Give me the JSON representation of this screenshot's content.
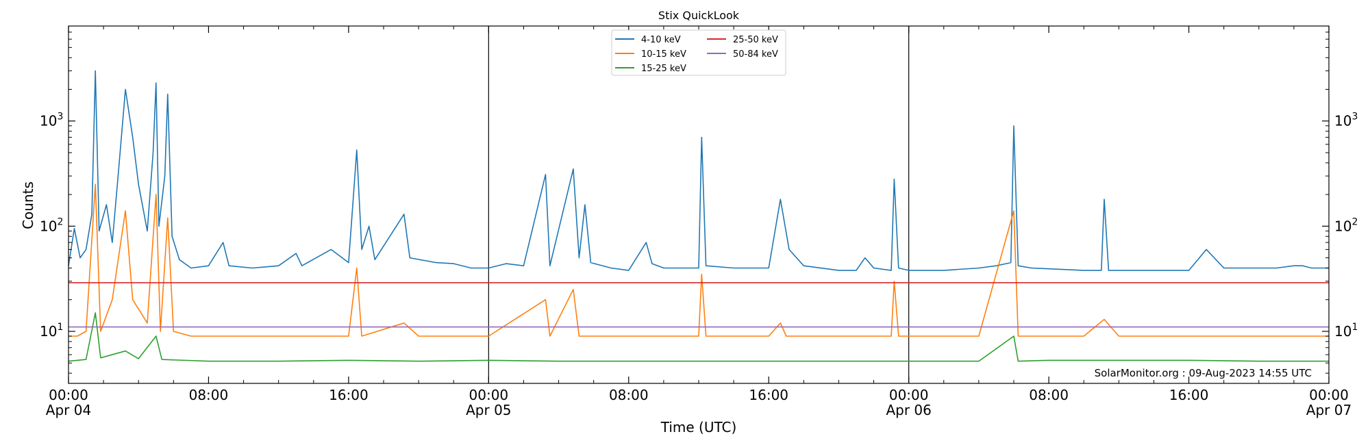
{
  "chart_data": {
    "type": "line",
    "title": "Stix QuickLook",
    "xlabel": "Time (UTC)",
    "ylabel": "Counts",
    "yscale": "log",
    "ylim": [
      3.2,
      8000
    ],
    "xlim": [
      "2023-04-04 00:00",
      "2023-04-07 00:00"
    ],
    "x_ticks": [
      {
        "time": "2023-04-04 00:00",
        "line1": "00:00",
        "line2": "Apr 04"
      },
      {
        "time": "2023-04-04 08:00",
        "line1": "08:00",
        "line2": ""
      },
      {
        "time": "2023-04-04 16:00",
        "line1": "16:00",
        "line2": ""
      },
      {
        "time": "2023-04-05 00:00",
        "line1": "00:00",
        "line2": "Apr 05"
      },
      {
        "time": "2023-04-05 08:00",
        "line1": "08:00",
        "line2": ""
      },
      {
        "time": "2023-04-05 16:00",
        "line1": "16:00",
        "line2": ""
      },
      {
        "time": "2023-04-06 00:00",
        "line1": "00:00",
        "line2": "Apr 06"
      },
      {
        "time": "2023-04-06 08:00",
        "line1": "08:00",
        "line2": ""
      },
      {
        "time": "2023-04-06 16:00",
        "line1": "16:00",
        "line2": ""
      },
      {
        "time": "2023-04-07 00:00",
        "line1": "00:00",
        "line2": "Apr 07"
      }
    ],
    "y_ticks": [
      {
        "value": 10,
        "label": "10",
        "exp": "1"
      },
      {
        "value": 100,
        "label": "10",
        "exp": "2"
      },
      {
        "value": 1000,
        "label": "10",
        "exp": "3"
      }
    ],
    "day_separators": [
      "2023-04-05 00:00",
      "2023-04-06 00:00"
    ],
    "legend_position": "top-center",
    "grid": false,
    "annotation": "SolarMonitor.org : 09-Aug-2023 14:55 UTC",
    "series": [
      {
        "name": "4-10 keV",
        "color": "#1f77b4",
        "values": [
          [
            "2023-04-04 00:00",
            42
          ],
          [
            "2023-04-04 00:20",
            95
          ],
          [
            "2023-04-04 00:40",
            50
          ],
          [
            "2023-04-04 01:00",
            60
          ],
          [
            "2023-04-04 01:20",
            130
          ],
          [
            "2023-04-04 01:32",
            3000
          ],
          [
            "2023-04-04 01:45",
            90
          ],
          [
            "2023-04-04 02:10",
            160
          ],
          [
            "2023-04-04 02:30",
            70
          ],
          [
            "2023-04-04 02:50",
            300
          ],
          [
            "2023-04-04 03:15",
            2000
          ],
          [
            "2023-04-04 03:40",
            700
          ],
          [
            "2023-04-04 04:00",
            250
          ],
          [
            "2023-04-04 04:30",
            90
          ],
          [
            "2023-04-04 04:50",
            500
          ],
          [
            "2023-04-04 05:00",
            2300
          ],
          [
            "2023-04-04 05:10",
            100
          ],
          [
            "2023-04-04 05:30",
            300
          ],
          [
            "2023-04-04 05:40",
            1800
          ],
          [
            "2023-04-04 05:55",
            80
          ],
          [
            "2023-04-04 06:20",
            48
          ],
          [
            "2023-04-04 07:00",
            40
          ],
          [
            "2023-04-04 08:00",
            42
          ],
          [
            "2023-04-04 08:50",
            70
          ],
          [
            "2023-04-04 09:10",
            42
          ],
          [
            "2023-04-04 10:30",
            40
          ],
          [
            "2023-04-04 12:00",
            42
          ],
          [
            "2023-04-04 13:00",
            55
          ],
          [
            "2023-04-04 13:20",
            42
          ],
          [
            "2023-04-04 15:00",
            60
          ],
          [
            "2023-04-04 16:00",
            45
          ],
          [
            "2023-04-04 16:28",
            530
          ],
          [
            "2023-04-04 16:45",
            60
          ],
          [
            "2023-04-04 17:10",
            100
          ],
          [
            "2023-04-04 17:30",
            48
          ],
          [
            "2023-04-04 19:10",
            130
          ],
          [
            "2023-04-04 19:30",
            50
          ],
          [
            "2023-04-04 21:00",
            45
          ],
          [
            "2023-04-04 22:00",
            44
          ],
          [
            "2023-04-04 23:00",
            40
          ],
          [
            "2023-04-05 00:00",
            40
          ],
          [
            "2023-04-05 01:00",
            44
          ],
          [
            "2023-04-05 02:00",
            42
          ],
          [
            "2023-04-05 03:15",
            310
          ],
          [
            "2023-04-05 03:30",
            42
          ],
          [
            "2023-04-05 04:50",
            350
          ],
          [
            "2023-04-05 05:10",
            50
          ],
          [
            "2023-04-05 05:30",
            160
          ],
          [
            "2023-04-05 05:50",
            45
          ],
          [
            "2023-04-05 07:00",
            40
          ],
          [
            "2023-04-05 08:00",
            38
          ],
          [
            "2023-04-05 09:00",
            70
          ],
          [
            "2023-04-05 09:20",
            44
          ],
          [
            "2023-04-05 10:00",
            40
          ],
          [
            "2023-04-05 11:00",
            40
          ],
          [
            "2023-04-05 12:00",
            40
          ],
          [
            "2023-04-05 12:10",
            700
          ],
          [
            "2023-04-05 12:25",
            42
          ],
          [
            "2023-04-05 14:00",
            40
          ],
          [
            "2023-04-05 15:00",
            40
          ],
          [
            "2023-04-05 16:00",
            40
          ],
          [
            "2023-04-05 16:40",
            180
          ],
          [
            "2023-04-05 17:10",
            60
          ],
          [
            "2023-04-05 18:00",
            42
          ],
          [
            "2023-04-05 20:00",
            38
          ],
          [
            "2023-04-05 21:00",
            38
          ],
          [
            "2023-04-05 21:30",
            50
          ],
          [
            "2023-04-05 22:00",
            40
          ],
          [
            "2023-04-05 23:00",
            38
          ],
          [
            "2023-04-05 23:10",
            280
          ],
          [
            "2023-04-05 23:25",
            40
          ],
          [
            "2023-04-06 00:00",
            38
          ],
          [
            "2023-04-06 02:00",
            38
          ],
          [
            "2023-04-06 04:00",
            40
          ],
          [
            "2023-04-06 05:00",
            42
          ],
          [
            "2023-04-06 05:50",
            45
          ],
          [
            "2023-04-06 06:00",
            900
          ],
          [
            "2023-04-06 06:15",
            42
          ],
          [
            "2023-04-06 07:00",
            40
          ],
          [
            "2023-04-06 10:00",
            38
          ],
          [
            "2023-04-06 11:00",
            38
          ],
          [
            "2023-04-06 11:10",
            180
          ],
          [
            "2023-04-06 11:25",
            38
          ],
          [
            "2023-04-06 13:00",
            38
          ],
          [
            "2023-04-06 16:00",
            38
          ],
          [
            "2023-04-06 17:00",
            60
          ],
          [
            "2023-04-06 18:00",
            40
          ],
          [
            "2023-04-06 19:00",
            40
          ],
          [
            "2023-04-06 20:00",
            40
          ],
          [
            "2023-04-06 21:00",
            40
          ],
          [
            "2023-04-06 22:00",
            42
          ],
          [
            "2023-04-06 22:30",
            42
          ],
          [
            "2023-04-06 23:00",
            40
          ],
          [
            "2023-04-07 00:00",
            40
          ]
        ]
      },
      {
        "name": "10-15 keV",
        "color": "#ff7f0e",
        "values": [
          [
            "2023-04-04 00:00",
            9
          ],
          [
            "2023-04-04 00:30",
            9
          ],
          [
            "2023-04-04 01:00",
            10
          ],
          [
            "2023-04-04 01:32",
            250
          ],
          [
            "2023-04-04 01:50",
            10
          ],
          [
            "2023-04-04 02:30",
            20
          ],
          [
            "2023-04-04 03:15",
            140
          ],
          [
            "2023-04-04 03:40",
            20
          ],
          [
            "2023-04-04 04:30",
            12
          ],
          [
            "2023-04-04 05:00",
            200
          ],
          [
            "2023-04-04 05:15",
            10
          ],
          [
            "2023-04-04 05:40",
            120
          ],
          [
            "2023-04-04 06:00",
            10
          ],
          [
            "2023-04-04 07:00",
            9
          ],
          [
            "2023-04-04 09:00",
            9
          ],
          [
            "2023-04-04 12:00",
            9
          ],
          [
            "2023-04-04 16:00",
            9
          ],
          [
            "2023-04-04 16:28",
            40
          ],
          [
            "2023-04-04 16:45",
            9
          ],
          [
            "2023-04-04 19:10",
            12
          ],
          [
            "2023-04-04 20:00",
            9
          ],
          [
            "2023-04-05 00:00",
            9
          ],
          [
            "2023-04-05 03:15",
            20
          ],
          [
            "2023-04-05 03:30",
            9
          ],
          [
            "2023-04-05 04:50",
            25
          ],
          [
            "2023-04-05 05:10",
            9
          ],
          [
            "2023-04-05 08:00",
            9
          ],
          [
            "2023-04-05 12:00",
            9
          ],
          [
            "2023-04-05 12:10",
            35
          ],
          [
            "2023-04-05 12:25",
            9
          ],
          [
            "2023-04-05 16:00",
            9
          ],
          [
            "2023-04-05 16:40",
            12
          ],
          [
            "2023-04-05 17:00",
            9
          ],
          [
            "2023-04-05 20:00",
            9
          ],
          [
            "2023-04-05 23:00",
            9
          ],
          [
            "2023-04-05 23:10",
            30
          ],
          [
            "2023-04-05 23:25",
            9
          ],
          [
            "2023-04-06 04:00",
            9
          ],
          [
            "2023-04-06 06:00",
            140
          ],
          [
            "2023-04-06 06:15",
            9
          ],
          [
            "2023-04-06 10:00",
            9
          ],
          [
            "2023-04-06 11:10",
            13
          ],
          [
            "2023-04-06 12:00",
            9
          ],
          [
            "2023-04-06 16:00",
            9
          ],
          [
            "2023-04-06 20:00",
            9
          ],
          [
            "2023-04-07 00:00",
            9
          ]
        ]
      },
      {
        "name": "15-25 keV",
        "color": "#2ca02c",
        "values": [
          [
            "2023-04-04 00:00",
            5.2
          ],
          [
            "2023-04-04 01:00",
            5.4
          ],
          [
            "2023-04-04 01:32",
            15
          ],
          [
            "2023-04-04 01:50",
            5.6
          ],
          [
            "2023-04-04 03:15",
            6.5
          ],
          [
            "2023-04-04 04:00",
            5.5
          ],
          [
            "2023-04-04 05:00",
            9
          ],
          [
            "2023-04-04 05:20",
            5.4
          ],
          [
            "2023-04-04 08:00",
            5.2
          ],
          [
            "2023-04-04 12:00",
            5.2
          ],
          [
            "2023-04-04 16:00",
            5.3
          ],
          [
            "2023-04-04 20:00",
            5.2
          ],
          [
            "2023-04-05 00:00",
            5.3
          ],
          [
            "2023-04-05 04:00",
            5.2
          ],
          [
            "2023-04-05 08:00",
            5.2
          ],
          [
            "2023-04-05 12:00",
            5.2
          ],
          [
            "2023-04-05 16:00",
            5.2
          ],
          [
            "2023-04-05 20:00",
            5.2
          ],
          [
            "2023-04-06 00:00",
            5.2
          ],
          [
            "2023-04-06 04:00",
            5.2
          ],
          [
            "2023-04-06 06:00",
            9
          ],
          [
            "2023-04-06 06:15",
            5.2
          ],
          [
            "2023-04-06 08:00",
            5.3
          ],
          [
            "2023-04-06 12:00",
            5.3
          ],
          [
            "2023-04-06 16:00",
            5.3
          ],
          [
            "2023-04-06 20:00",
            5.2
          ],
          [
            "2023-04-07 00:00",
            5.2
          ]
        ]
      },
      {
        "name": "25-50 keV",
        "color": "#d62728",
        "values": [
          [
            "2023-04-04 00:00",
            29
          ],
          [
            "2023-04-04 12:00",
            29
          ],
          [
            "2023-04-05 00:00",
            29
          ],
          [
            "2023-04-05 12:00",
            29
          ],
          [
            "2023-04-06 00:00",
            29
          ],
          [
            "2023-04-06 12:00",
            29
          ],
          [
            "2023-04-07 00:00",
            29
          ]
        ]
      },
      {
        "name": "50-84 keV",
        "color": "#9467bd",
        "values": [
          [
            "2023-04-04 00:00",
            11
          ],
          [
            "2023-04-04 12:00",
            11
          ],
          [
            "2023-04-05 00:00",
            11
          ],
          [
            "2023-04-05 12:00",
            11
          ],
          [
            "2023-04-06 00:00",
            11
          ],
          [
            "2023-04-06 12:00",
            11
          ],
          [
            "2023-04-07 00:00",
            11
          ]
        ]
      }
    ]
  }
}
